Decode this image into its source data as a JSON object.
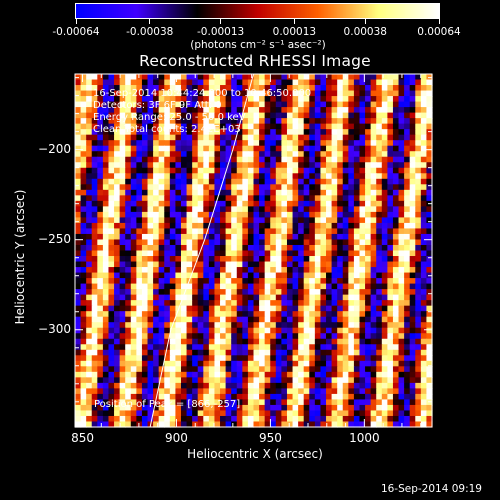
{
  "chart_data": {
    "type": "heatmap",
    "title": "Reconstructed RHESSI Image",
    "xlabel": "Heliocentric X (arcsec)",
    "ylabel": "Heliocentric Y (arcsec)",
    "xlim": [
      846,
      1036
    ],
    "ylim": [
      -354,
      -158
    ],
    "x_ticks": [
      850,
      900,
      950,
      1000
    ],
    "y_ticks": [
      -200,
      -250,
      -300
    ],
    "colorbar": {
      "min": -0.00064,
      "max": 0.00064,
      "tick_values": [
        -0.00064,
        -0.00038,
        -0.00013,
        0.00013,
        0.00038,
        0.00064
      ],
      "tick_labels": [
        "-0.00064",
        "-0.00038",
        "-0.00013",
        "0.00013",
        "0.00038",
        "0.00064"
      ],
      "unit_label": "(photons cm⁻² s⁻¹ asec⁻²)",
      "colors": [
        "#0000ff",
        "#4000ff",
        "#000000",
        "#c00000",
        "#ff6000",
        "#ffff80",
        "#ffffff"
      ]
    },
    "grid": false,
    "annotations": {
      "time_range": "16-Sep-2014 10:44:24.000 to 10:46:50.000",
      "detectors": "Detectors: 3F 6F 9F  Att: 0",
      "energy_range": "Energy Range: 25.0 - 50.0 keV",
      "algorithm": "Clean    Total counts: 2.42E+03",
      "peak": "Position of Peak = [866,-257]"
    },
    "limb_curve": [
      [
        941,
        -158
      ],
      [
        930,
        -200
      ],
      [
        915,
        -250
      ],
      [
        897,
        -300
      ],
      [
        886,
        -354
      ]
    ],
    "pixel_grid": {
      "nx": 64,
      "ny": 64
    },
    "image_values_note": null
  },
  "footer": {
    "timestamp": "16-Sep-2014 09:19"
  }
}
